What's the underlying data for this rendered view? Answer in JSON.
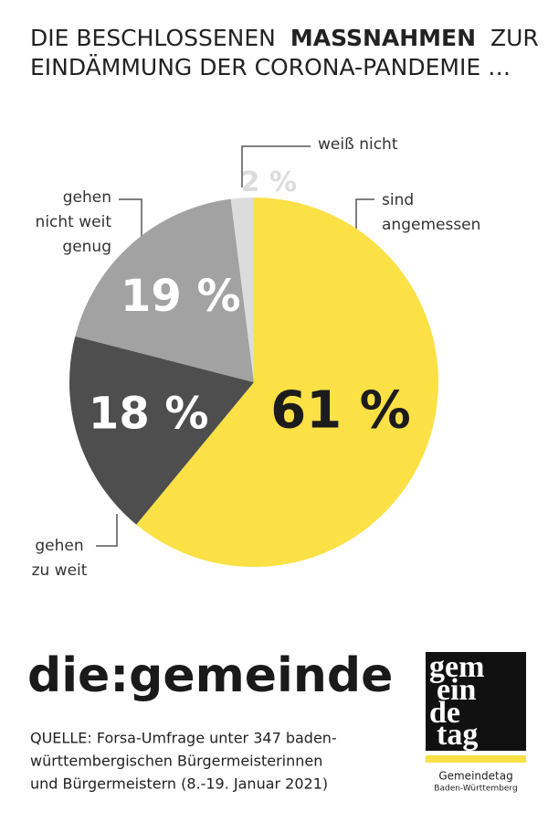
{
  "chart_data": {
    "type": "pie",
    "title": [
      "DIE BESCHLOSSENEN",
      "MASSNAHMEN",
      "ZUR",
      "EINDÄMMUNG DER CORONA-PANDEMIE …"
    ],
    "categories": [
      "sind angemessen",
      "gehen zu weit",
      "gehen nicht weit genug",
      "weiß nicht"
    ],
    "values": [
      61,
      18,
      19,
      2
    ],
    "value_labels": [
      "61 %",
      "18 %",
      "19 %",
      "2 %"
    ],
    "colors": [
      "#fbe046",
      "#4e4e4e",
      "#a2a2a2",
      "#dcdcdc"
    ],
    "label_colors": [
      "#1c1c1c",
      "#ffffff",
      "#ffffff",
      "#dcdcdc"
    ]
  },
  "footer": {
    "brand": "die:gemeinde",
    "source": [
      "QUELLE: Forsa-Umfrage unter 347 baden-",
      "württembergischen Bürgermeisterinnen",
      "und Bürgermeistern (8.-19. Januar 2021)"
    ],
    "logo_mark": [
      "gem",
      "ein",
      "de",
      "tag"
    ],
    "logo_name": "Gemeindetag",
    "logo_region": "Baden-Württemberg"
  }
}
